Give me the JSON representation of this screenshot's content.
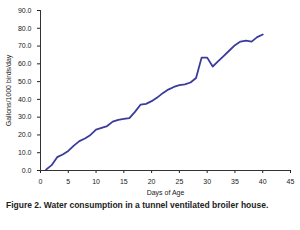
{
  "chart_data": {
    "type": "line",
    "caption": "Figure 2. Water consumption in a tunnel ventilated broiler house.",
    "x_label": "Days of Age",
    "y_label": "Gallons/1000 birds/day",
    "x": [
      1,
      2,
      3,
      4,
      5,
      6,
      7,
      8,
      9,
      10,
      11,
      12,
      13,
      14,
      15,
      16,
      17,
      18,
      19,
      20,
      21,
      22,
      23,
      24,
      25,
      26,
      27,
      28,
      29,
      30,
      31,
      32,
      33,
      34,
      35,
      36,
      37,
      38,
      39,
      40
    ],
    "values": [
      0.5,
      3,
      7.5,
      9,
      11,
      14,
      16.5,
      18,
      20,
      23,
      24,
      25,
      27.5,
      28.5,
      29,
      29.5,
      33,
      37,
      37.5,
      39,
      41,
      43.5,
      45.5,
      47,
      48,
      48.5,
      49.5,
      52,
      63.5,
      63.5,
      58.5,
      61.5,
      64.5,
      67.5,
      70.5,
      72.5,
      73,
      72.5,
      75,
      76.5
    ],
    "color": "#3b3b9c",
    "xlim": [
      0,
      45
    ],
    "xticks": [
      0,
      5,
      10,
      15,
      20,
      25,
      30,
      35,
      40,
      45
    ],
    "ylim": [
      0,
      90
    ],
    "yticks": [
      {
        "value": 0,
        "label": "0.0"
      },
      {
        "value": 10,
        "label": "10.0"
      },
      {
        "value": 20,
        "label": "20.0"
      },
      {
        "value": 30,
        "label": "30.0"
      },
      {
        "value": 40,
        "label": "40.0"
      },
      {
        "value": 50,
        "label": "50.0"
      },
      {
        "value": 60,
        "label": "60.0"
      },
      {
        "value": 70,
        "label": "70.0"
      },
      {
        "value": 80,
        "label": "80.0"
      },
      {
        "value": 90,
        "label": "90.0"
      }
    ],
    "grid": false
  }
}
